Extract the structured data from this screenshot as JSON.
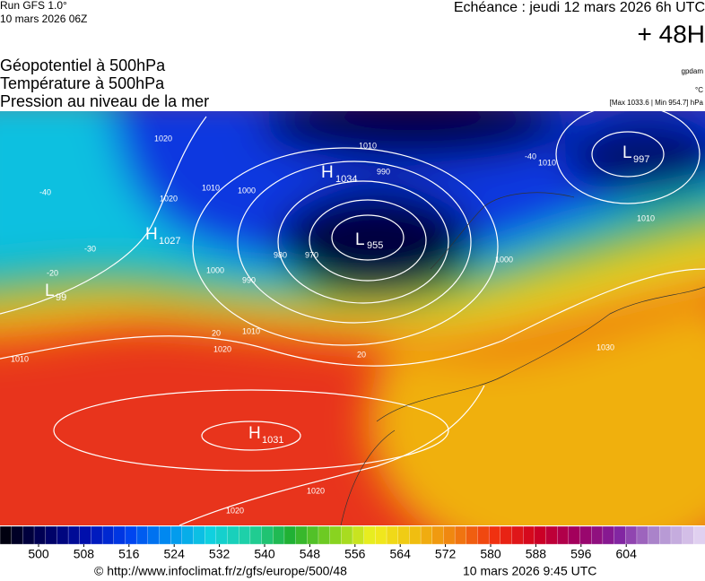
{
  "header": {
    "run": "Run GFS 1.0°",
    "run_date": "10 mars 2026 06Z",
    "forecast": "Echéance : jeudi 12 mars 2026 6h UTC",
    "lead": "+ 48H"
  },
  "titles": [
    "Géopotentiel à 500hPa",
    "Température à 500hPa",
    "Pression au niveau de la mer"
  ],
  "units": {
    "geopotential": "gpdam",
    "temperature": "°C",
    "pressure_range": "[Max 1033.6 | Min 954.7] hPa"
  },
  "centers": [
    {
      "kind": "H",
      "value": "1034"
    },
    {
      "kind": "L",
      "value": "955"
    },
    {
      "kind": "H",
      "value": "1027"
    },
    {
      "kind": "L",
      "value": "997"
    },
    {
      "kind": "L",
      "value": "99"
    },
    {
      "kind": "H",
      "value": "1031"
    }
  ],
  "contour_labels": [
    "1020",
    "1010",
    "1000",
    "990",
    "980",
    "970",
    "1010",
    "1000",
    "990",
    "1010",
    "1020",
    "1010",
    "1020",
    "1020",
    "1010",
    "1030",
    "1020",
    "-40",
    "-30",
    "-20",
    "-40",
    "20",
    "20",
    "1010",
    "1000"
  ],
  "colorbar": {
    "ticks": [
      500,
      508,
      516,
      524,
      532,
      540,
      548,
      556,
      564,
      572,
      580,
      588,
      596,
      604
    ]
  },
  "footer": {
    "url": "© http://www.infoclimat.fr/z/gfs/europe/500/48",
    "issued": "10 mars 2026  9:45 UTC"
  }
}
